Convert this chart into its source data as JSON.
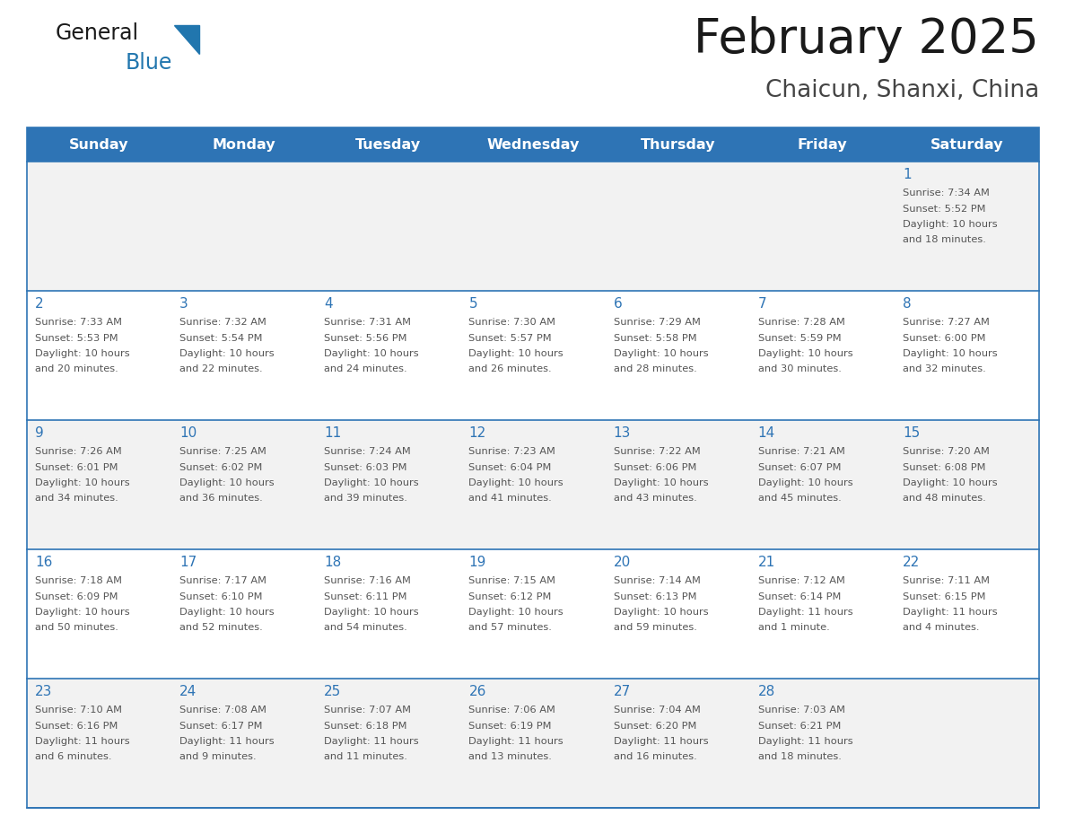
{
  "title": "February 2025",
  "subtitle": "Chaicun, Shanxi, China",
  "header_bg": "#2E74B5",
  "header_text_color": "#FFFFFF",
  "cell_bg_row0": "#F2F2F2",
  "cell_bg_row1": "#FFFFFF",
  "cell_bg_row2": "#F2F2F2",
  "cell_bg_row3": "#FFFFFF",
  "cell_bg_row4": "#F2F2F2",
  "border_color": "#2E74B5",
  "day_number_color": "#2E74B5",
  "text_color": "#555555",
  "days_of_week": [
    "Sunday",
    "Monday",
    "Tuesday",
    "Wednesday",
    "Thursday",
    "Friday",
    "Saturday"
  ],
  "calendar_data": [
    [
      null,
      null,
      null,
      null,
      null,
      null,
      {
        "day": "1",
        "sunrise": "Sunrise: 7:34 AM",
        "sunset": "Sunset: 5:52 PM",
        "daylight": "Daylight: 10 hours",
        "daylight2": "and 18 minutes."
      }
    ],
    [
      {
        "day": "2",
        "sunrise": "Sunrise: 7:33 AM",
        "sunset": "Sunset: 5:53 PM",
        "daylight": "Daylight: 10 hours",
        "daylight2": "and 20 minutes."
      },
      {
        "day": "3",
        "sunrise": "Sunrise: 7:32 AM",
        "sunset": "Sunset: 5:54 PM",
        "daylight": "Daylight: 10 hours",
        "daylight2": "and 22 minutes."
      },
      {
        "day": "4",
        "sunrise": "Sunrise: 7:31 AM",
        "sunset": "Sunset: 5:56 PM",
        "daylight": "Daylight: 10 hours",
        "daylight2": "and 24 minutes."
      },
      {
        "day": "5",
        "sunrise": "Sunrise: 7:30 AM",
        "sunset": "Sunset: 5:57 PM",
        "daylight": "Daylight: 10 hours",
        "daylight2": "and 26 minutes."
      },
      {
        "day": "6",
        "sunrise": "Sunrise: 7:29 AM",
        "sunset": "Sunset: 5:58 PM",
        "daylight": "Daylight: 10 hours",
        "daylight2": "and 28 minutes."
      },
      {
        "day": "7",
        "sunrise": "Sunrise: 7:28 AM",
        "sunset": "Sunset: 5:59 PM",
        "daylight": "Daylight: 10 hours",
        "daylight2": "and 30 minutes."
      },
      {
        "day": "8",
        "sunrise": "Sunrise: 7:27 AM",
        "sunset": "Sunset: 6:00 PM",
        "daylight": "Daylight: 10 hours",
        "daylight2": "and 32 minutes."
      }
    ],
    [
      {
        "day": "9",
        "sunrise": "Sunrise: 7:26 AM",
        "sunset": "Sunset: 6:01 PM",
        "daylight": "Daylight: 10 hours",
        "daylight2": "and 34 minutes."
      },
      {
        "day": "10",
        "sunrise": "Sunrise: 7:25 AM",
        "sunset": "Sunset: 6:02 PM",
        "daylight": "Daylight: 10 hours",
        "daylight2": "and 36 minutes."
      },
      {
        "day": "11",
        "sunrise": "Sunrise: 7:24 AM",
        "sunset": "Sunset: 6:03 PM",
        "daylight": "Daylight: 10 hours",
        "daylight2": "and 39 minutes."
      },
      {
        "day": "12",
        "sunrise": "Sunrise: 7:23 AM",
        "sunset": "Sunset: 6:04 PM",
        "daylight": "Daylight: 10 hours",
        "daylight2": "and 41 minutes."
      },
      {
        "day": "13",
        "sunrise": "Sunrise: 7:22 AM",
        "sunset": "Sunset: 6:06 PM",
        "daylight": "Daylight: 10 hours",
        "daylight2": "and 43 minutes."
      },
      {
        "day": "14",
        "sunrise": "Sunrise: 7:21 AM",
        "sunset": "Sunset: 6:07 PM",
        "daylight": "Daylight: 10 hours",
        "daylight2": "and 45 minutes."
      },
      {
        "day": "15",
        "sunrise": "Sunrise: 7:20 AM",
        "sunset": "Sunset: 6:08 PM",
        "daylight": "Daylight: 10 hours",
        "daylight2": "and 48 minutes."
      }
    ],
    [
      {
        "day": "16",
        "sunrise": "Sunrise: 7:18 AM",
        "sunset": "Sunset: 6:09 PM",
        "daylight": "Daylight: 10 hours",
        "daylight2": "and 50 minutes."
      },
      {
        "day": "17",
        "sunrise": "Sunrise: 7:17 AM",
        "sunset": "Sunset: 6:10 PM",
        "daylight": "Daylight: 10 hours",
        "daylight2": "and 52 minutes."
      },
      {
        "day": "18",
        "sunrise": "Sunrise: 7:16 AM",
        "sunset": "Sunset: 6:11 PM",
        "daylight": "Daylight: 10 hours",
        "daylight2": "and 54 minutes."
      },
      {
        "day": "19",
        "sunrise": "Sunrise: 7:15 AM",
        "sunset": "Sunset: 6:12 PM",
        "daylight": "Daylight: 10 hours",
        "daylight2": "and 57 minutes."
      },
      {
        "day": "20",
        "sunrise": "Sunrise: 7:14 AM",
        "sunset": "Sunset: 6:13 PM",
        "daylight": "Daylight: 10 hours",
        "daylight2": "and 59 minutes."
      },
      {
        "day": "21",
        "sunrise": "Sunrise: 7:12 AM",
        "sunset": "Sunset: 6:14 PM",
        "daylight": "Daylight: 11 hours",
        "daylight2": "and 1 minute."
      },
      {
        "day": "22",
        "sunrise": "Sunrise: 7:11 AM",
        "sunset": "Sunset: 6:15 PM",
        "daylight": "Daylight: 11 hours",
        "daylight2": "and 4 minutes."
      }
    ],
    [
      {
        "day": "23",
        "sunrise": "Sunrise: 7:10 AM",
        "sunset": "Sunset: 6:16 PM",
        "daylight": "Daylight: 11 hours",
        "daylight2": "and 6 minutes."
      },
      {
        "day": "24",
        "sunrise": "Sunrise: 7:08 AM",
        "sunset": "Sunset: 6:17 PM",
        "daylight": "Daylight: 11 hours",
        "daylight2": "and 9 minutes."
      },
      {
        "day": "25",
        "sunrise": "Sunrise: 7:07 AM",
        "sunset": "Sunset: 6:18 PM",
        "daylight": "Daylight: 11 hours",
        "daylight2": "and 11 minutes."
      },
      {
        "day": "26",
        "sunrise": "Sunrise: 7:06 AM",
        "sunset": "Sunset: 6:19 PM",
        "daylight": "Daylight: 11 hours",
        "daylight2": "and 13 minutes."
      },
      {
        "day": "27",
        "sunrise": "Sunrise: 7:04 AM",
        "sunset": "Sunset: 6:20 PM",
        "daylight": "Daylight: 11 hours",
        "daylight2": "and 16 minutes."
      },
      {
        "day": "28",
        "sunrise": "Sunrise: 7:03 AM",
        "sunset": "Sunset: 6:21 PM",
        "daylight": "Daylight: 11 hours",
        "daylight2": "and 18 minutes."
      },
      null
    ]
  ],
  "fig_width": 11.88,
  "fig_height": 9.18,
  "dpi": 100
}
